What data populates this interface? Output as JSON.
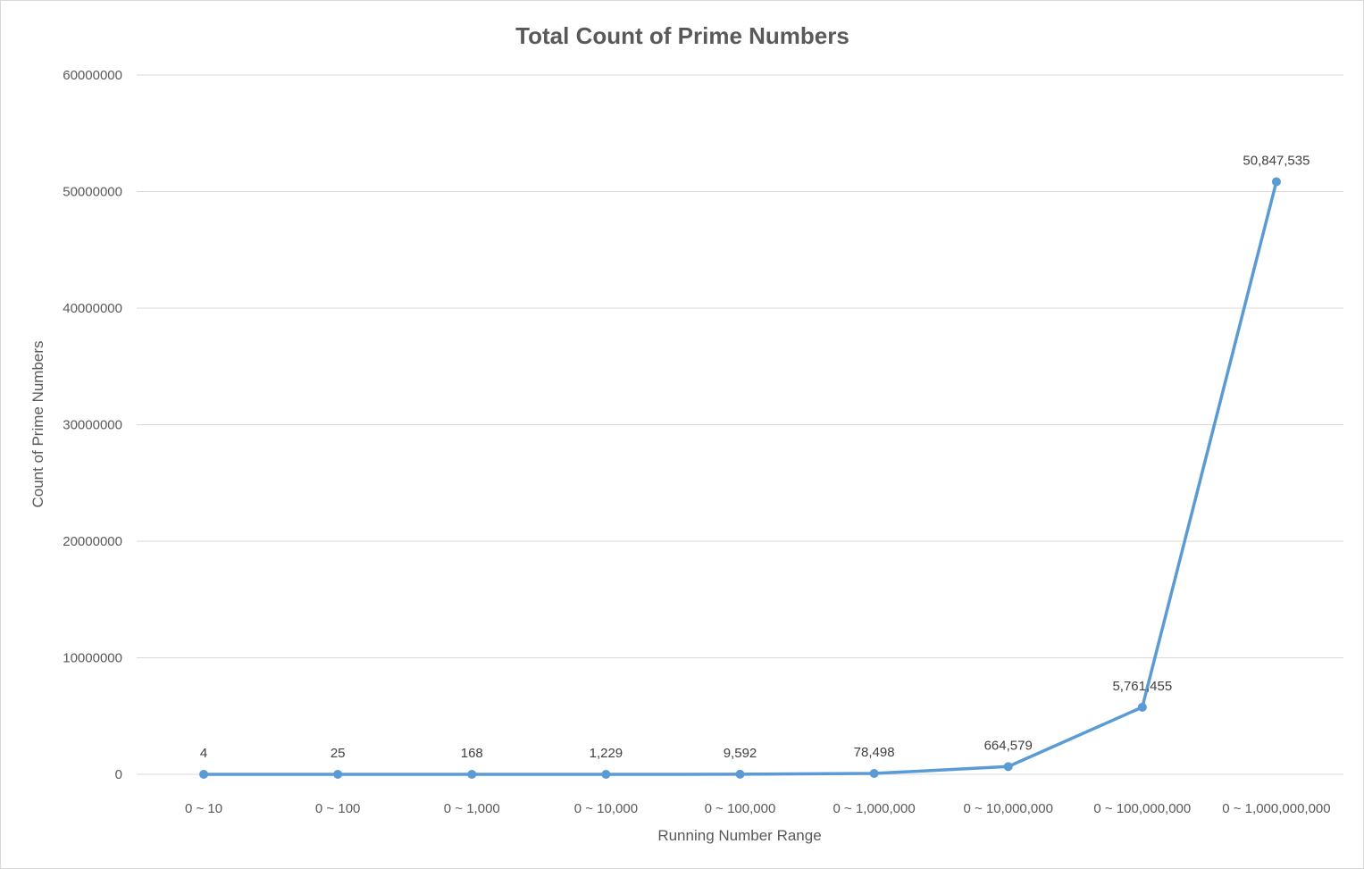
{
  "chart_data": {
    "type": "line",
    "title": "Total Count of Prime Numbers",
    "xlabel": "Running Number Range",
    "ylabel": "Count of Prime Numbers",
    "categories": [
      "0 ~ 10",
      "0 ~ 100",
      "0 ~ 1,000",
      "0 ~ 10,000",
      "0 ~ 100,000",
      "0 ~ 1,000,000",
      "0 ~ 10,000,000",
      "0 ~ 100,000,000",
      "0 ~ 1,000,000,000"
    ],
    "series": [
      {
        "values": [
          4,
          25,
          168,
          1229,
          9592,
          78498,
          664579,
          5761455,
          50847535
        ],
        "data_labels": [
          "4",
          "25",
          "168",
          "1,229",
          "9,592",
          "78,498",
          "664,579",
          "5,761,455",
          "50,847,535"
        ],
        "color": "#5b9bd5"
      }
    ],
    "ylim": [
      0,
      60000000
    ],
    "yticks": [
      0,
      10000000,
      20000000,
      30000000,
      40000000,
      50000000,
      60000000
    ],
    "ytick_labels": [
      "0",
      "10000000",
      "20000000",
      "30000000",
      "40000000",
      "50000000",
      "60000000"
    ],
    "grid": true,
    "gridline_color": "#d9d9d9",
    "legend": "none"
  }
}
